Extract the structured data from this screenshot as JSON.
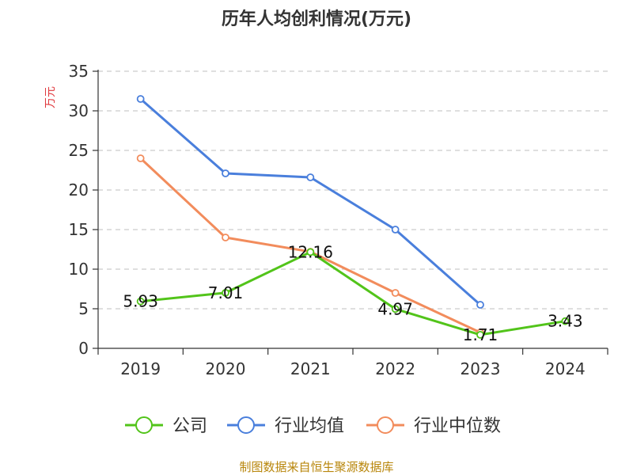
{
  "chart_data": {
    "type": "line",
    "title": "历年人均创利情况(万元)",
    "ylabel": "万元",
    "xlabel": "",
    "categories": [
      "2019",
      "2020",
      "2021",
      "2022",
      "2023",
      "2024"
    ],
    "ylim": [
      0,
      35
    ],
    "yticks": [
      0,
      5,
      10,
      15,
      20,
      25,
      30,
      35
    ],
    "grid": true,
    "legend_position": "bottom",
    "series": [
      {
        "name": "公司",
        "color": "#52c41a",
        "values": [
          5.93,
          7.01,
          12.16,
          4.97,
          1.71,
          3.43
        ],
        "labels": [
          "5.93",
          "7.01",
          "12.16",
          "4.97",
          "1.71",
          "3.43"
        ]
      },
      {
        "name": "行业均值",
        "color": "#4a7fdc",
        "values": [
          31.5,
          22.1,
          21.6,
          15.0,
          5.5,
          null
        ]
      },
      {
        "name": "行业中位数",
        "color": "#f28c5c",
        "values": [
          24.0,
          14.0,
          12.2,
          7.0,
          2.0,
          null
        ]
      }
    ]
  },
  "footer": {
    "source": "制图数据来自恒生聚源数据库"
  }
}
